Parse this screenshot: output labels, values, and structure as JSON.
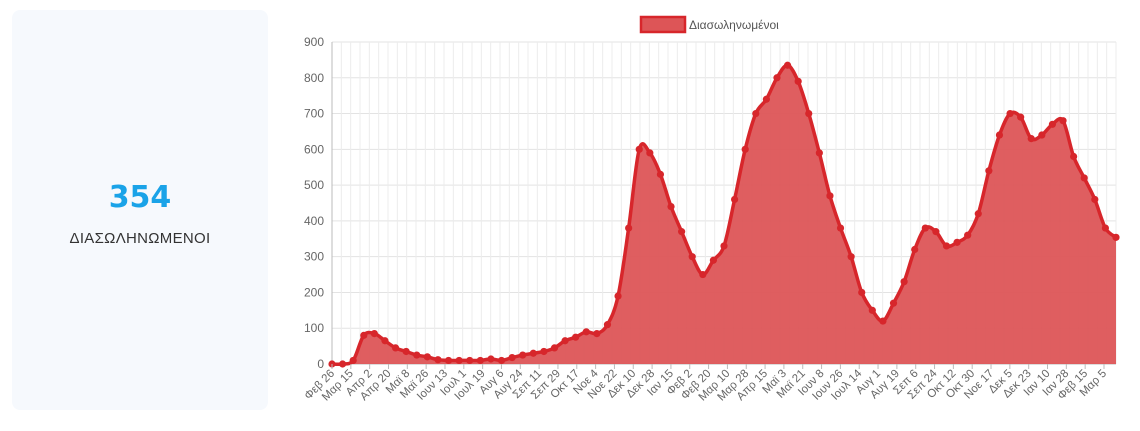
{
  "stat": {
    "value": "354",
    "label": "ΔΙΑΣΩΛΗΝΩΜΕΝΟΙ"
  },
  "colors": {
    "accent": "#1aa3e8",
    "series_fill": "#dd5557",
    "series_line": "#d7262b"
  },
  "chart_data": {
    "type": "area",
    "title": "",
    "xlabel": "",
    "ylabel": "",
    "ylim": [
      0,
      900
    ],
    "yticks": [
      0,
      100,
      200,
      300,
      400,
      500,
      600,
      700,
      800,
      900
    ],
    "grid": true,
    "legend_position": "top-center",
    "x_tick_labels": [
      "Φεβ 26",
      "Μαρ 15",
      "Απρ 2",
      "Απρ 20",
      "Μαϊ 8",
      "Μαϊ 26",
      "Ιουν 13",
      "Ιουλ 1",
      "Ιουλ 19",
      "Αυγ 6",
      "Αυγ 24",
      "Σεπ 11",
      "Σεπ 29",
      "Οκτ 17",
      "Νοε 4",
      "Νοε 22",
      "Δεκ 10",
      "Δεκ 28",
      "Ιαν 15",
      "Φεβ 2",
      "Φεβ 20",
      "Μαρ 10",
      "Μαρ 28",
      "Απρ 15",
      "Μαϊ 3",
      "Μαϊ 21",
      "Ιουν 8",
      "Ιουν 26",
      "Ιουλ 14",
      "Αυγ 1",
      "Αυγ 19",
      "Σεπ 6",
      "Σεπ 24",
      "Οκτ 12",
      "Οκτ 30",
      "Νοε 17",
      "Δεκ 5",
      "Δεκ 23",
      "Ιαν 10",
      "Ιαν 28",
      "Φεβ 15",
      "Μαρ 5"
    ],
    "series": [
      {
        "name": "Διασωληνωμένοι",
        "values": [
          0,
          0,
          10,
          80,
          85,
          65,
          45,
          35,
          25,
          20,
          12,
          10,
          10,
          10,
          10,
          14,
          10,
          18,
          25,
          30,
          35,
          45,
          65,
          75,
          90,
          85,
          110,
          190,
          380,
          600,
          590,
          530,
          440,
          370,
          300,
          250,
          290,
          330,
          460,
          600,
          700,
          740,
          800,
          835,
          790,
          700,
          590,
          470,
          380,
          300,
          200,
          150,
          120,
          170,
          230,
          320,
          380,
          370,
          330,
          340,
          360,
          420,
          540,
          640,
          700,
          690,
          630,
          640,
          670,
          680,
          580,
          520,
          460,
          380,
          354
        ]
      }
    ]
  }
}
